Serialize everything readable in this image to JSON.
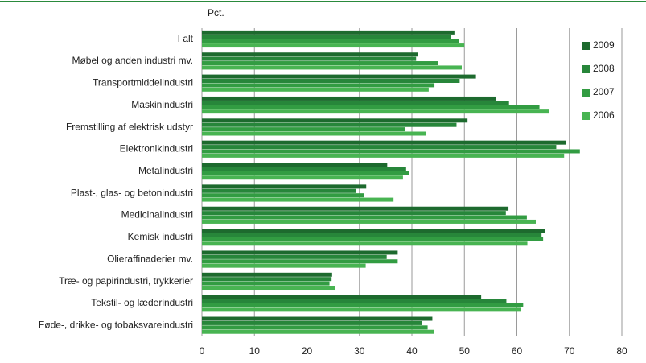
{
  "chart_data": {
    "type": "hbar",
    "xlabel": "Pct.",
    "categories": [
      "I alt",
      "Møbel og anden industri mv.",
      "Transportmiddelindustri",
      "Maskinindustri",
      "Fremstilling af elektrisk udstyr",
      "Elektronikindustri",
      "Metalindustri",
      "Plast-, glas- og betonindustri",
      "Medicinalindustri",
      "Kemisk industri",
      "Olieraffinaderier mv.",
      "Træ- og papirindustri, trykkerier",
      "Tekstil- og læderindustri",
      "Føde-, drikke- og tobaksvareindustri"
    ],
    "series": [
      {
        "name": "2009",
        "color": "#1d6a2e",
        "values": [
          48.1,
          41.2,
          52.2,
          56,
          50.6,
          69.3,
          35.3,
          31.3,
          58.4,
          65.3,
          37.3,
          24.8,
          53.2,
          43.9
        ]
      },
      {
        "name": "2008",
        "color": "#27863a",
        "values": [
          47.5,
          40.8,
          49.1,
          58.5,
          48.5,
          67.5,
          38.9,
          29.3,
          57.9,
          64.7,
          35.2,
          24.7,
          58,
          41.9
        ]
      },
      {
        "name": "2007",
        "color": "#329c42",
        "values": [
          48.9,
          45,
          44.3,
          64.3,
          38.7,
          72,
          39.5,
          30.9,
          61.9,
          65,
          37.3,
          24.3,
          61.2,
          43
        ]
      },
      {
        "name": "2006",
        "color": "#48b452",
        "values": [
          50,
          49.5,
          43.2,
          66.2,
          42.7,
          69,
          38.3,
          36.5,
          63.6,
          62,
          31.2,
          25.4,
          60.8,
          44.2
        ]
      }
    ],
    "xlim": [
      0,
      80
    ],
    "xticks": [
      0,
      10,
      20,
      30,
      40,
      50,
      60,
      70,
      80
    ],
    "grid": true,
    "legend": "right"
  }
}
